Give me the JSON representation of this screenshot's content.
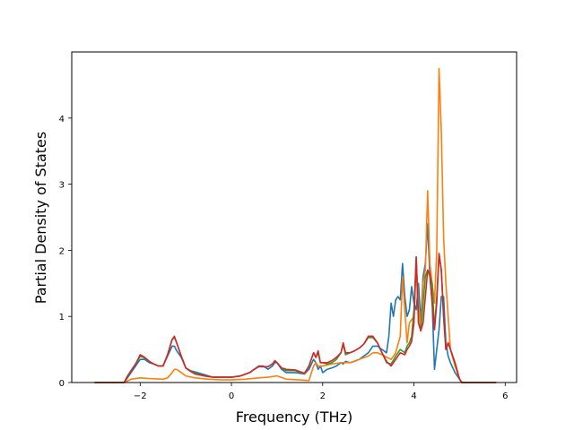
{
  "chart_data": {
    "type": "line",
    "title": "",
    "xlabel": "Frequency (THz)",
    "ylabel": "Partial Density of States",
    "xlim": [
      -3.5,
      6.25
    ],
    "ylim": [
      0,
      5.0
    ],
    "xticks": [
      -2,
      0,
      2,
      4,
      6
    ],
    "yticks": [
      0,
      1,
      2,
      3,
      4
    ],
    "xtick_labels": [
      "−2",
      "0",
      "2",
      "4",
      "6"
    ],
    "ytick_labels": [
      "0",
      "1",
      "2",
      "3",
      "4"
    ],
    "grid": false,
    "legend": "none",
    "series": [
      {
        "color": "#1f77b4",
        "x": [
          -3.0,
          -2.4,
          -2.35,
          -2.3,
          -2.2,
          -2.1,
          -2.0,
          -1.9,
          -1.8,
          -1.7,
          -1.6,
          -1.5,
          -1.4,
          -1.3,
          -1.25,
          -1.2,
          -1.1,
          -1.0,
          -0.9,
          -0.8,
          -0.6,
          -0.4,
          -0.2,
          0.0,
          0.2,
          0.4,
          0.5,
          0.6,
          0.7,
          0.8,
          0.9,
          0.95,
          1.0,
          1.1,
          1.2,
          1.4,
          1.6,
          1.7,
          1.8,
          1.85,
          1.9,
          1.95,
          2.0,
          2.1,
          2.2,
          2.3,
          2.4,
          2.45,
          2.5,
          2.6,
          2.7,
          2.8,
          2.9,
          3.0,
          3.1,
          3.2,
          3.3,
          3.4,
          3.45,
          3.5,
          3.55,
          3.6,
          3.65,
          3.7,
          3.75,
          3.8,
          3.85,
          3.9,
          3.95,
          4.0,
          4.05,
          4.1,
          4.15,
          4.2,
          4.25,
          4.3,
          4.35,
          4.4,
          4.45,
          4.5,
          4.55,
          4.6,
          4.65,
          4.7,
          4.75,
          4.8,
          4.9,
          5.0,
          5.05,
          5.2,
          5.8
        ],
        "y": [
          0,
          0,
          0,
          0.05,
          0.15,
          0.25,
          0.35,
          0.35,
          0.3,
          0.28,
          0.25,
          0.25,
          0.4,
          0.55,
          0.55,
          0.48,
          0.38,
          0.22,
          0.18,
          0.16,
          0.12,
          0.08,
          0.08,
          0.08,
          0.1,
          0.15,
          0.2,
          0.25,
          0.25,
          0.2,
          0.25,
          0.3,
          0.3,
          0.2,
          0.15,
          0.15,
          0.13,
          0.2,
          0.35,
          0.3,
          0.2,
          0.25,
          0.15,
          0.2,
          0.22,
          0.25,
          0.3,
          0.28,
          0.32,
          0.3,
          0.32,
          0.35,
          0.4,
          0.45,
          0.55,
          0.55,
          0.5,
          0.45,
          0.7,
          1.2,
          1.0,
          1.25,
          1.3,
          1.25,
          1.8,
          1.3,
          1.0,
          1.1,
          1.45,
          1.2,
          1.1,
          1.5,
          0.9,
          1.6,
          1.8,
          2.4,
          1.6,
          1.2,
          0.2,
          0.5,
          0.8,
          1.3,
          1.3,
          0.6,
          0.4,
          0.3,
          0.15,
          0.05,
          0,
          0,
          0
        ]
      },
      {
        "color": "#ff7f0e",
        "x": [
          -3.0,
          -2.4,
          -2.35,
          -2.2,
          -2.0,
          -1.8,
          -1.5,
          -1.4,
          -1.3,
          -1.25,
          -1.2,
          -1.1,
          -1.0,
          -0.8,
          -0.5,
          -0.2,
          0.0,
          0.3,
          0.6,
          0.8,
          1.0,
          1.2,
          1.5,
          1.7,
          1.8,
          1.85,
          1.9,
          2.0,
          2.2,
          2.4,
          2.6,
          2.8,
          3.0,
          3.1,
          3.2,
          3.3,
          3.5,
          3.6,
          3.7,
          3.75,
          3.8,
          3.85,
          3.9,
          4.0,
          4.05,
          4.1,
          4.15,
          4.2,
          4.25,
          4.3,
          4.35,
          4.4,
          4.45,
          4.5,
          4.55,
          4.6,
          4.65,
          4.7,
          4.75,
          4.8,
          4.9,
          5.0,
          5.05,
          5.2,
          5.8
        ],
        "y": [
          0,
          0,
          0,
          0.05,
          0.07,
          0.06,
          0.05,
          0.07,
          0.15,
          0.2,
          0.2,
          0.15,
          0.1,
          0.07,
          0.05,
          0.04,
          0.04,
          0.05,
          0.07,
          0.08,
          0.1,
          0.05,
          0.04,
          0.03,
          0.25,
          0.3,
          0.25,
          0.25,
          0.28,
          0.3,
          0.3,
          0.35,
          0.4,
          0.45,
          0.45,
          0.42,
          0.35,
          0.45,
          0.7,
          1.6,
          1.1,
          0.6,
          0.9,
          1.0,
          1.8,
          1.2,
          0.8,
          1.5,
          1.7,
          2.9,
          1.8,
          1.5,
          1.2,
          2.0,
          4.75,
          3.8,
          2.2,
          1.5,
          1.0,
          0.5,
          0.25,
          0.05,
          0,
          0,
          0
        ]
      },
      {
        "color": "#2ca02c",
        "x": [
          -3.0,
          -2.4,
          -2.35,
          -2.3,
          -2.2,
          -2.1,
          -2.0,
          -1.9,
          -1.8,
          -1.7,
          -1.6,
          -1.5,
          -1.4,
          -1.3,
          -1.25,
          -1.2,
          -1.1,
          -1.0,
          -0.9,
          -0.8,
          -0.6,
          -0.4,
          -0.2,
          0.0,
          0.2,
          0.4,
          0.5,
          0.6,
          0.7,
          0.8,
          0.9,
          0.95,
          1.0,
          1.1,
          1.2,
          1.4,
          1.6,
          1.7,
          1.8,
          1.85,
          1.9,
          1.95,
          2.0,
          2.1,
          2.2,
          2.3,
          2.4,
          2.45,
          2.5,
          2.6,
          2.7,
          2.8,
          2.9,
          3.0,
          3.1,
          3.2,
          3.3,
          3.4,
          3.5,
          3.6,
          3.7,
          3.8,
          3.85,
          3.9,
          3.95,
          4.0,
          4.05,
          4.1,
          4.15,
          4.2,
          4.25,
          4.3,
          4.35,
          4.4,
          4.45,
          4.5,
          4.55,
          4.6,
          4.65,
          4.7,
          4.75,
          4.8,
          4.9,
          5.0,
          5.05,
          5.2,
          5.8
        ],
        "y": [
          0,
          0,
          0,
          0.07,
          0.18,
          0.28,
          0.4,
          0.37,
          0.32,
          0.28,
          0.25,
          0.25,
          0.42,
          0.65,
          0.68,
          0.6,
          0.4,
          0.22,
          0.18,
          0.14,
          0.1,
          0.08,
          0.08,
          0.08,
          0.1,
          0.15,
          0.2,
          0.24,
          0.24,
          0.24,
          0.28,
          0.33,
          0.3,
          0.22,
          0.18,
          0.18,
          0.13,
          0.25,
          0.45,
          0.38,
          0.45,
          0.3,
          0.3,
          0.28,
          0.3,
          0.35,
          0.45,
          0.58,
          0.42,
          0.45,
          0.48,
          0.52,
          0.58,
          0.68,
          0.68,
          0.6,
          0.45,
          0.3,
          0.28,
          0.4,
          0.5,
          0.45,
          0.55,
          0.6,
          0.7,
          1.1,
          1.9,
          0.9,
          0.8,
          1.2,
          1.6,
          1.7,
          1.6,
          1.5,
          0.8,
          1.3,
          1.95,
          1.7,
          1.0,
          0.5,
          0.6,
          0.5,
          0.3,
          0.05,
          0,
          0,
          0
        ]
      },
      {
        "color": "#d62728",
        "x": [
          -3.0,
          -2.4,
          -2.35,
          -2.3,
          -2.2,
          -2.1,
          -2.0,
          -1.9,
          -1.8,
          -1.7,
          -1.6,
          -1.5,
          -1.4,
          -1.3,
          -1.25,
          -1.2,
          -1.1,
          -1.0,
          -0.9,
          -0.8,
          -0.6,
          -0.4,
          -0.2,
          0.0,
          0.2,
          0.4,
          0.5,
          0.6,
          0.7,
          0.8,
          0.9,
          0.95,
          1.0,
          1.1,
          1.2,
          1.4,
          1.6,
          1.7,
          1.8,
          1.85,
          1.9,
          1.95,
          2.0,
          2.1,
          2.2,
          2.3,
          2.4,
          2.45,
          2.5,
          2.6,
          2.7,
          2.8,
          2.9,
          3.0,
          3.1,
          3.2,
          3.3,
          3.4,
          3.5,
          3.6,
          3.7,
          3.8,
          3.85,
          3.9,
          3.95,
          4.0,
          4.05,
          4.1,
          4.15,
          4.2,
          4.25,
          4.3,
          4.35,
          4.4,
          4.45,
          4.5,
          4.55,
          4.6,
          4.65,
          4.7,
          4.75,
          4.8,
          4.9,
          5.0,
          5.05,
          5.2,
          5.8
        ],
        "y": [
          0,
          0,
          0,
          0.07,
          0.18,
          0.28,
          0.42,
          0.38,
          0.32,
          0.28,
          0.25,
          0.25,
          0.42,
          0.65,
          0.7,
          0.6,
          0.4,
          0.22,
          0.17,
          0.13,
          0.1,
          0.08,
          0.08,
          0.08,
          0.1,
          0.15,
          0.2,
          0.24,
          0.24,
          0.24,
          0.28,
          0.33,
          0.3,
          0.22,
          0.2,
          0.19,
          0.14,
          0.25,
          0.45,
          0.38,
          0.48,
          0.3,
          0.3,
          0.3,
          0.33,
          0.38,
          0.45,
          0.6,
          0.45,
          0.45,
          0.48,
          0.52,
          0.58,
          0.7,
          0.7,
          0.6,
          0.45,
          0.32,
          0.25,
          0.35,
          0.45,
          0.42,
          0.5,
          0.55,
          0.62,
          0.9,
          1.9,
          0.9,
          0.78,
          0.9,
          1.3,
          1.7,
          1.65,
          1.2,
          0.8,
          1.2,
          1.95,
          1.7,
          1.0,
          0.5,
          0.6,
          0.5,
          0.3,
          0.05,
          0,
          0,
          0
        ]
      }
    ]
  }
}
